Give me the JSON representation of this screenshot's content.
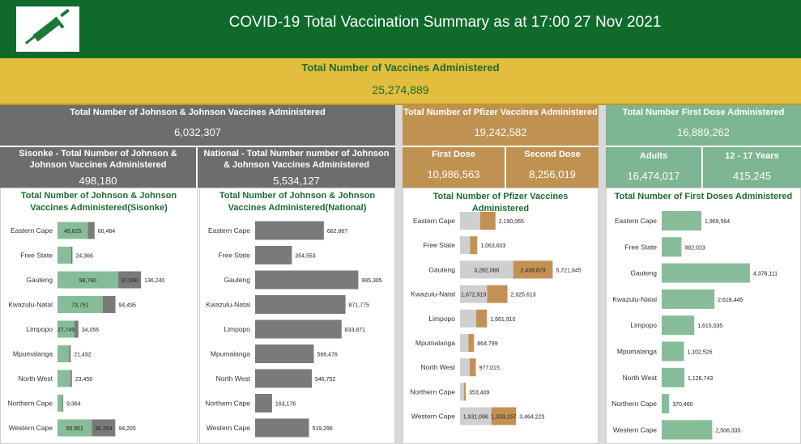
{
  "header": {
    "title": "COVID-19 Total Vaccination Summary as at 17:00 27 Nov 2021",
    "logo_icon": "syringe-icon"
  },
  "total": {
    "label": "Total Number of Vaccines Administered",
    "value": "25,274,889"
  },
  "jj": {
    "label": "Total Number of Johnson & Johnson Vaccines Administered",
    "value": "6,032,307"
  },
  "sisonke": {
    "label": "Sisonke - Total Number of Johnson & Johnson Vaccines Administered",
    "value": "498,180"
  },
  "national": {
    "label": "National - Total Number number of Johnson & Johnson Vaccines Administered",
    "value": "5,534,127"
  },
  "pfizer": {
    "label": "Total Number of Pfizer Vaccines Administered",
    "value": "19,242,582"
  },
  "pfizer_first": {
    "label": "First Dose",
    "value": "10,986,563"
  },
  "pfizer_second": {
    "label": "Second Dose",
    "value": "8,256,019"
  },
  "first_dose": {
    "label": "Total Number First Dose Administered",
    "value": "16,889,262"
  },
  "adults": {
    "label": "Adults",
    "value": "16,474,017"
  },
  "teens": {
    "label": "12 - 17 Years",
    "value": "415,245"
  },
  "colors": {
    "header_green": "#0e6b2c",
    "gold": "#e3bd3d",
    "dark_gray": "#6d6d6d",
    "pfizer_tan": "#c09252",
    "mint": "#7eb593",
    "bar_green": "#86bd98",
    "bar_gray": "#7a7a7a",
    "bar_light": "#cfcfcf",
    "bar_orange": "#c49155"
  },
  "chart_data": [
    {
      "type": "bar",
      "orientation": "horizontal",
      "stacked": true,
      "title": "Total Number of Johnson & Johnson Vaccines Administered(Sisonke)",
      "categories": [
        "Eastern Cape",
        "Free State",
        "Gauteng",
        "Kwazulu-Natal",
        "Limpopo",
        "Mpumalanga",
        "North West",
        "Northern Cape",
        "Western Cape"
      ],
      "series": [
        {
          "values": [
            49625,
            22000,
            98740,
            73751,
            27749,
            19000,
            21000,
            8000,
            55951
          ],
          "labels": [
            "49,625",
            "",
            "98,740",
            "73,751",
            "27,749",
            "",
            "",
            "",
            "55,951"
          ]
        },
        {
          "values": [
            10839,
            2366,
            37500,
            20744,
            6307,
            2492,
            2456,
            1364,
            38254
          ],
          "labels": [
            "",
            "",
            "37,500",
            "",
            "",
            "",
            "",
            "",
            "38,254"
          ]
        }
      ],
      "totals": [
        "60,464",
        "24,366",
        "136,240",
        "94,495",
        "34,056",
        "21,492",
        "23,456",
        "9,364",
        "94,205"
      ],
      "xlim": [
        0,
        140000
      ]
    },
    {
      "type": "bar",
      "orientation": "horizontal",
      "title": "Total Number of Johnson & Johnson Vaccines Administered(National)",
      "categories": [
        "Eastern Cape",
        "Free State",
        "Gauteng",
        "Kwazulu-Natal",
        "Limpopo",
        "Mpumalanga",
        "North West",
        "Northern Cape",
        "Western Cape"
      ],
      "values": [
        662867,
        354553,
        995305,
        871775,
        833871,
        566476,
        546752,
        163176,
        519296
      ],
      "labels": [
        "662,867",
        "354,553",
        "995,305",
        "871,775",
        "833,871",
        "566,476",
        "546,752",
        "163,176",
        "519,296"
      ],
      "xlim": [
        0,
        1000000
      ]
    },
    {
      "type": "bar",
      "orientation": "horizontal",
      "stacked": true,
      "title": "Total Number of Pfizer Vaccines Administered",
      "categories": [
        "Eastern Cape",
        "Free State",
        "Gauteng",
        "Kwazulu-Natal",
        "Limpopo",
        "Mpumalanga",
        "North West",
        "Northern Cape",
        "Western Cape"
      ],
      "series": [
        {
          "values": [
            1250000,
            620000,
            3282066,
            1672919,
            1000000,
            520000,
            600000,
            240000,
            1931066
          ],
          "labels": [
            "",
            "",
            "3,282,066",
            "1,672,919",
            "",
            "",
            "",
            "",
            "1,931,066"
          ]
        },
        {
          "values": [
            940065,
            443603,
            2439879,
            1252694,
            661910,
            344799,
            377015,
            113409,
            1533157
          ],
          "labels": [
            "",
            "",
            "2,439,879",
            "",
            "",
            "",
            "",
            "",
            "1,533,157"
          ]
        }
      ],
      "totals": [
        "2,190,065",
        "1,063,603",
        "5,721,945",
        "2,925,613",
        "1,661,910",
        "864,799",
        "977,015",
        "353,409",
        "3,464,223"
      ],
      "xlim": [
        0,
        6000000
      ]
    },
    {
      "type": "bar",
      "orientation": "horizontal",
      "title": "Total Number of First Doses Administered",
      "categories": [
        "Eastern Cape",
        "Free State",
        "Gauteng",
        "Kwazulu-Natal",
        "Limpopo",
        "Mpumalanga",
        "North West",
        "Northern Cape",
        "Western Cape"
      ],
      "values": [
        1969564,
        982023,
        4376111,
        2618445,
        1615035,
        1102526,
        1126743,
        370460,
        2506335
      ],
      "labels": [
        "1,969,564",
        "982,023",
        "4,376,111",
        "2,618,445",
        "1,615,035",
        "1,102,526",
        "1,126,743",
        "370,460",
        "2,506,335"
      ],
      "xlim": [
        0,
        4500000
      ]
    }
  ]
}
